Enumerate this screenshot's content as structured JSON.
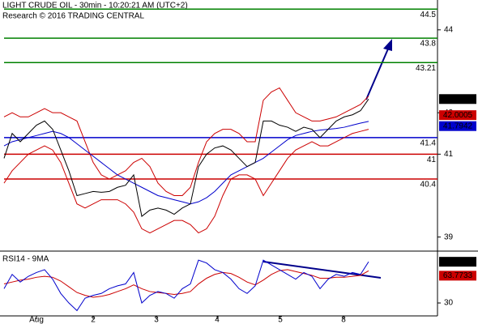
{
  "chart_data": [
    {
      "type": "line",
      "title": "LIGHT CRUDE OIL - 30min - 10:20:21 AM (UTC+2)",
      "subtitle": "Research © 2016 TRADING CENTRAL",
      "ylim": [
        38.7,
        44.72
      ],
      "yticks": [
        39,
        41,
        42,
        44
      ],
      "xticks": [
        {
          "value": 4,
          "label": "Aug"
        },
        {
          "value": 11,
          "label": "2"
        },
        {
          "value": 18.8,
          "label": "3"
        },
        {
          "value": 26.3,
          "label": "4"
        },
        {
          "value": 34.1,
          "label": "5"
        },
        {
          "value": 41.9,
          "label": "8"
        }
      ],
      "levels": [
        {
          "value": 44.5,
          "color": "#008000"
        },
        {
          "value": 43.8,
          "color": "#008000"
        },
        {
          "value": 43.21,
          "color": "#008000"
        },
        {
          "value": 41.4,
          "color": "#0000cc"
        },
        {
          "value": 41,
          "color": "#cc0000"
        },
        {
          "value": 40.4,
          "color": "#cc0000"
        }
      ],
      "series": [
        {
          "color": "#cc0000",
          "values": [
            41.9,
            42.0,
            41.9,
            41.9,
            42.0,
            42.1,
            42.0,
            42.0,
            41.9,
            41.8,
            41.3,
            40.8,
            40.5,
            40.4,
            40.5,
            40.6,
            40.8,
            40.9,
            40.7,
            40.3,
            40.1,
            40.0,
            40.0,
            40.2,
            40.8,
            41.3,
            41.5,
            41.6,
            41.6,
            41.5,
            41.3,
            41.3,
            42.3,
            42.5,
            42.6,
            42.3,
            42.0,
            41.9,
            41.8,
            41.8,
            41.85,
            41.9,
            42.0,
            42.1,
            42.2,
            42.4
          ]
        },
        {
          "color": "#cc0000",
          "values": [
            40.3,
            40.6,
            40.8,
            41.0,
            41.1,
            41.2,
            41.1,
            40.8,
            40.3,
            39.8,
            39.7,
            39.8,
            39.9,
            39.9,
            39.9,
            39.8,
            39.6,
            39.2,
            39.1,
            39.2,
            39.3,
            39.4,
            39.4,
            39.3,
            39.1,
            39.2,
            39.5,
            40.0,
            40.4,
            40.5,
            40.5,
            40.4,
            40.0,
            40.3,
            40.6,
            40.9,
            41.1,
            41.2,
            41.3,
            41.2,
            41.2,
            41.3,
            41.4,
            41.5,
            41.55,
            41.6
          ]
        },
        {
          "color": "#0000cc",
          "values": [
            41.2,
            41.3,
            41.35,
            41.4,
            41.45,
            41.5,
            41.55,
            41.5,
            41.4,
            41.25,
            41.1,
            40.95,
            40.8,
            40.65,
            40.5,
            40.4,
            40.3,
            40.2,
            40.1,
            40.0,
            39.95,
            39.9,
            39.85,
            39.8,
            39.85,
            39.95,
            40.1,
            40.3,
            40.5,
            40.6,
            40.7,
            40.8,
            40.9,
            41.05,
            41.2,
            41.35,
            41.45,
            41.5,
            41.55,
            41.58,
            41.6,
            41.62,
            41.65,
            41.7,
            41.75,
            41.79
          ]
        },
        {
          "color": "#000000",
          "values": [
            40.9,
            41.5,
            41.3,
            41.5,
            41.7,
            41.8,
            41.6,
            41.1,
            40.6,
            40.0,
            40.05,
            40.1,
            40.08,
            40.1,
            40.2,
            40.25,
            40.5,
            39.5,
            39.65,
            39.7,
            39.65,
            39.55,
            39.7,
            39.8,
            40.7,
            41.0,
            41.15,
            41.2,
            41.1,
            40.9,
            40.7,
            40.8,
            41.8,
            41.8,
            41.7,
            41.65,
            41.55,
            41.65,
            41.6,
            41.4,
            41.6,
            41.8,
            41.9,
            41.95,
            42.05,
            42.33
          ]
        }
      ],
      "badges": [
        {
          "value": 42.33,
          "color": "#000000"
        },
        {
          "value": 42.0005,
          "color": "#cc0000"
        },
        {
          "value": 41.7942,
          "color": "#0000cc"
        }
      ]
    },
    {
      "type": "line",
      "title": "RSI14 - 9MA",
      "ylim": [
        9.6,
        82.8
      ],
      "yticks": [
        30
      ],
      "series": [
        {
          "color": "#cc0000",
          "values": [
            50,
            52,
            54,
            55,
            57,
            58,
            57,
            53,
            47,
            41,
            38,
            36,
            37,
            39,
            42,
            45,
            49,
            45,
            42,
            41,
            40,
            39,
            40,
            42,
            50,
            56,
            60,
            62,
            61,
            57,
            52,
            49,
            54,
            60,
            64,
            65,
            63,
            61,
            59,
            56,
            56,
            57,
            57,
            58,
            59,
            63.77
          ]
        },
        {
          "color": "#0000cc",
          "values": [
            45,
            60,
            52,
            58,
            62,
            65,
            55,
            40,
            30,
            22,
            35,
            38,
            40,
            45,
            48,
            50,
            62,
            30,
            38,
            42,
            40,
            35,
            45,
            50,
            75,
            72,
            65,
            62,
            55,
            45,
            40,
            48,
            75,
            70,
            65,
            60,
            55,
            62,
            58,
            45,
            55,
            60,
            58,
            62,
            60,
            73.2999
          ]
        }
      ],
      "badges": [
        {
          "value": 73.2999,
          "color": "#000000"
        },
        {
          "value": 63.7733,
          "color": "#cc0000"
        }
      ]
    }
  ]
}
